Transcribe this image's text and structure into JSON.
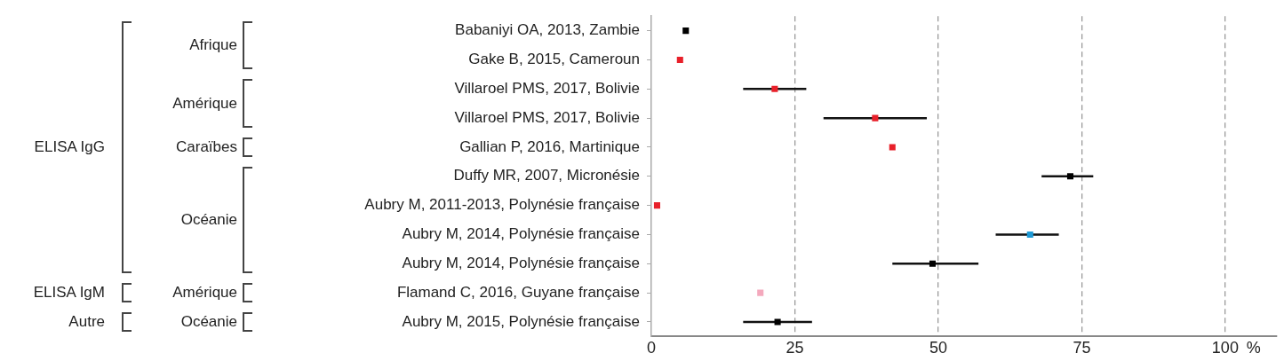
{
  "chart_data": {
    "type": "scatter",
    "orientation": "horizontal",
    "categories": [
      "Babaniyi OA, 2013, Zambie",
      "Gake B, 2015, Cameroun",
      "Villaroel PMS, 2017, Bolivie",
      "Villaroel PMS, 2017, Bolivie",
      "Gallian P, 2016, Martinique",
      "Duffy MR, 2007, Micronésie",
      "Aubry M, 2011-2013, Polynésie française",
      "Aubry M, 2014, Polynésie française",
      "Aubry M, 2014, Polynésie française",
      "Flamand C, 2016, Guyane française",
      "Aubry M, 2015, Polynésie française"
    ],
    "values": [
      6,
      5,
      21.5,
      39,
      42,
      73,
      1,
      66,
      49,
      19,
      22
    ],
    "errors": [
      null,
      null,
      [
        16,
        27
      ],
      [
        30,
        48
      ],
      null,
      [
        68,
        77
      ],
      null,
      [
        60,
        71
      ],
      [
        42,
        57
      ],
      null,
      [
        16,
        28
      ]
    ],
    "colors": [
      "#000000",
      "#e8202a",
      "#e8202a",
      "#e8202a",
      "#e8202a",
      "#000000",
      "#e8202a",
      "#1e9ad6",
      "#000000",
      "#f4a9bd",
      "#000000"
    ],
    "xlim": [
      0,
      109
    ],
    "xticks": [
      0,
      25,
      50,
      75,
      100
    ],
    "xlabel": "%",
    "grid": "x",
    "marker": "square",
    "annotations": [
      "ELISA IgG",
      "ELISA IgM",
      "Autre",
      "Afrique",
      "Amérique",
      "Caraïbes",
      "Océanie",
      "Amérique",
      "Océanie"
    ]
  }
}
